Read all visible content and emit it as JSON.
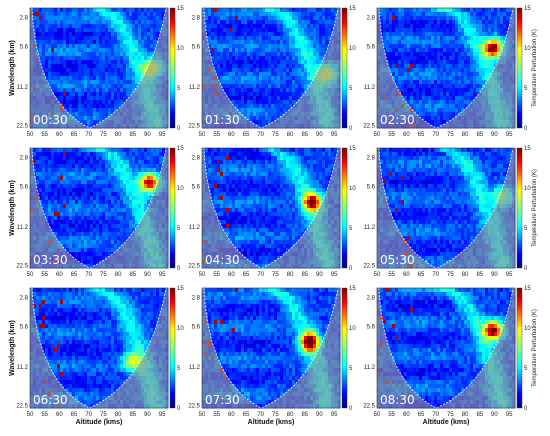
{
  "chart_data": {
    "type": "heatmap",
    "panels": [
      {
        "time": "00:30",
        "peak": {
          "alt": 92,
          "wl_log": 0.5,
          "amp": 0.55
        }
      },
      {
        "time": "01:30",
        "peak": {
          "alt": 93,
          "wl_log": 0.55,
          "amp": 0.5
        }
      },
      {
        "time": "02:30",
        "peak": {
          "alt": 90,
          "wl_log": 0.33,
          "amp": 1.0
        }
      },
      {
        "time": "03:30",
        "peak": {
          "alt": 91,
          "wl_log": 0.28,
          "amp": 0.95
        }
      },
      {
        "time": "04:30",
        "peak": {
          "alt": 88,
          "wl_log": 0.45,
          "amp": 0.85
        }
      },
      {
        "time": "05:30",
        "peak": {
          "alt": 93,
          "wl_log": 0.4,
          "amp": 0.45
        }
      },
      {
        "time": "06:30",
        "peak": {
          "alt": 85,
          "wl_log": 0.62,
          "amp": 0.5
        }
      },
      {
        "time": "07:30",
        "peak": {
          "alt": 87,
          "wl_log": 0.45,
          "amp": 1.0
        }
      },
      {
        "time": "08:30",
        "peak": {
          "alt": 90,
          "wl_log": 0.35,
          "amp": 1.0
        }
      }
    ],
    "xticks": [
      "50",
      "55",
      "60",
      "65",
      "70",
      "75",
      "80",
      "85",
      "90",
      "95"
    ],
    "yticks": [
      "2.8",
      "5.6",
      "11.2",
      "22.5"
    ],
    "xlim": [
      50,
      97
    ],
    "xlabel": "Altitude (kms)",
    "ylabel": "Wavelength (km)",
    "colorbar": {
      "ticks": [
        "0",
        "5",
        "10",
        "15"
      ],
      "range": [
        0,
        15
      ],
      "label": "Temperature Perturbation (K)"
    },
    "colormap": [
      "#00007f",
      "#0000ff",
      "#0080ff",
      "#00ffff",
      "#80ff80",
      "#ffff00",
      "#ff8000",
      "#ff0000",
      "#7f0000"
    ]
  }
}
